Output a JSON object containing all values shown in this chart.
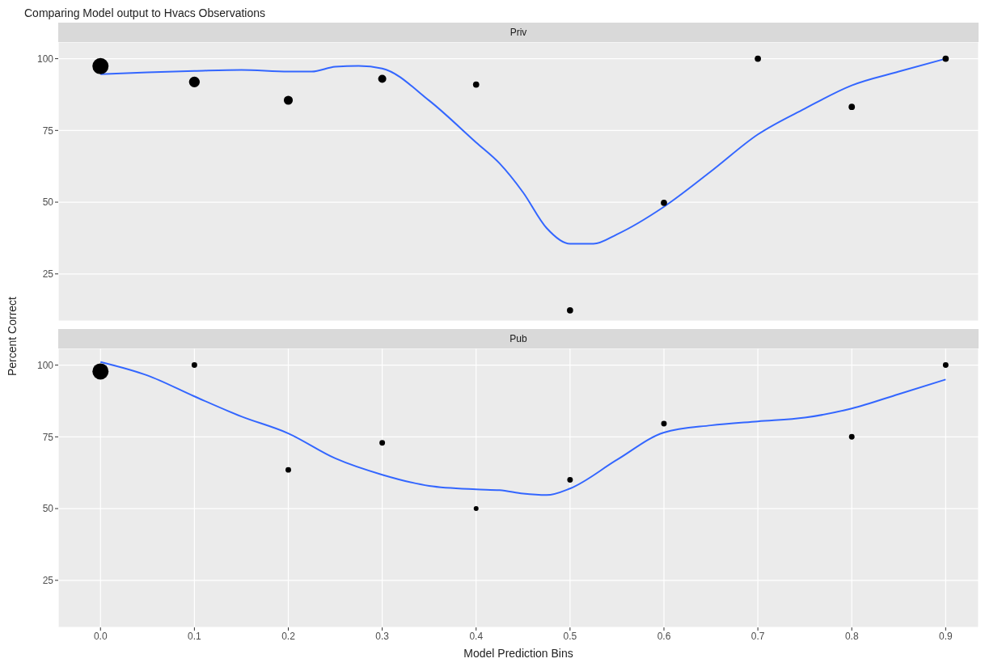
{
  "chart_data": [
    {
      "type": "bubble",
      "title": "Comparing Model output to Hvacs Observations",
      "subtitle": "Priv",
      "ylabel": "Percent Correct",
      "x": [
        0,
        0.1,
        0.2,
        0.3,
        0.4,
        0.5,
        0.6,
        0.7,
        0.8,
        0.9
      ],
      "xlim": [
        -0.045,
        0.935
      ],
      "xticks": [
        0,
        0.1,
        0.2,
        0.3,
        0.4,
        0.5,
        0.6,
        0.7,
        0.8,
        0.9
      ],
      "ylim": [
        8.6,
        105.8
      ],
      "yticks": [
        25,
        50,
        75,
        100
      ],
      "grid": true,
      "tick_labels": "y",
      "series": [
        {
          "color": "#000000",
          "values": [
            97.4,
            91.9,
            85.5,
            93.0,
            91.0,
            12.3,
            49.8,
            100,
            83.2,
            100
          ],
          "sizes": [
            1,
            0.44,
            0.31,
            0.25,
            0.15,
            0.15,
            0.15,
            0.15,
            0.15,
            0.15
          ]
        },
        {
          "type": "line",
          "color": "#3366ff",
          "x": [
            0,
            0.05,
            0.1,
            0.15,
            0.2,
            0.225,
            0.25,
            0.275,
            0.3,
            0.35,
            0.4,
            0.425,
            0.45,
            0.475,
            0.5,
            0.525,
            0.55,
            0.6,
            0.65,
            0.7,
            0.75,
            0.8,
            0.85,
            0.9
          ],
          "values": [
            94.6,
            95.2,
            95.7,
            96.1,
            95.5,
            95.5,
            97.2,
            97.5,
            96.6,
            85.4,
            70.8,
            63.5,
            53.4,
            41,
            35.5,
            35.5,
            38.8,
            48.4,
            60.7,
            73.6,
            82.6,
            90.7,
            95.5,
            100
          ]
        }
      ]
    },
    {
      "type": "bubble",
      "subtitle": "Pub",
      "xlabel": "Model Prediction Bins",
      "x": [
        0,
        0.1,
        0.2,
        0.3,
        0.4,
        0.5,
        0.6,
        0.8,
        0.9
      ],
      "xlim": [
        -0.045,
        0.935
      ],
      "xticks": [
        {
          "value": 0,
          "label": "0.0"
        },
        0.1,
        0.2,
        0.3,
        0.4,
        0.5,
        0.6,
        0.7,
        0.8,
        0.9
      ],
      "ylim": [
        8.6,
        105.8
      ],
      "yticks": [
        25,
        50,
        75,
        100
      ],
      "grid": true,
      "series": [
        {
          "color": "#000000",
          "values": [
            97.8,
            100,
            63.5,
            72.9,
            50,
            60,
            79.6,
            75,
            100
          ],
          "sizes": [
            1,
            0.12,
            0.12,
            0.12,
            0.09,
            0.12,
            0.12,
            0.12,
            0.12
          ]
        },
        {
          "type": "line",
          "color": "#3366ff",
          "x": [
            0,
            0.05,
            0.1,
            0.15,
            0.2,
            0.25,
            0.3,
            0.35,
            0.4,
            0.425,
            0.45,
            0.475,
            0.5,
            0.55,
            0.6,
            0.65,
            0.7,
            0.75,
            0.8,
            0.85,
            0.9
          ],
          "values": [
            101.1,
            96.4,
            89.1,
            82.1,
            76.2,
            67.5,
            61.8,
            57.9,
            56.7,
            56.4,
            55.2,
            54.7,
            57,
            67,
            76.5,
            79,
            80.4,
            81.7,
            84.9,
            89.9,
            95
          ]
        }
      ]
    }
  ]
}
